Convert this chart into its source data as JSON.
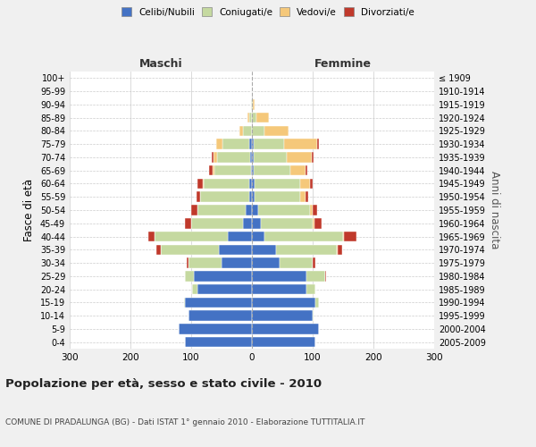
{
  "age_groups": [
    "0-4",
    "5-9",
    "10-14",
    "15-19",
    "20-24",
    "25-29",
    "30-34",
    "35-39",
    "40-44",
    "45-49",
    "50-54",
    "55-59",
    "60-64",
    "65-69",
    "70-74",
    "75-79",
    "80-84",
    "85-89",
    "90-94",
    "95-99",
    "100+"
  ],
  "birth_years": [
    "2005-2009",
    "2000-2004",
    "1995-1999",
    "1990-1994",
    "1985-1989",
    "1980-1984",
    "1975-1979",
    "1970-1974",
    "1965-1969",
    "1960-1964",
    "1955-1959",
    "1950-1954",
    "1945-1949",
    "1940-1944",
    "1935-1939",
    "1930-1934",
    "1925-1929",
    "1920-1924",
    "1915-1919",
    "1910-1914",
    "≤ 1909"
  ],
  "males": {
    "celibi": [
      110,
      120,
      105,
      110,
      90,
      95,
      50,
      55,
      40,
      15,
      10,
      5,
      4,
      2,
      3,
      4,
      0,
      0,
      0,
      0,
      0
    ],
    "coniugati": [
      0,
      0,
      0,
      2,
      8,
      15,
      55,
      95,
      120,
      85,
      80,
      80,
      75,
      60,
      55,
      45,
      15,
      5,
      1,
      0,
      0
    ],
    "vedovi": [
      0,
      0,
      0,
      0,
      0,
      0,
      0,
      0,
      0,
      0,
      0,
      1,
      2,
      3,
      5,
      10,
      5,
      2,
      0,
      0,
      0
    ],
    "divorziati": [
      0,
      0,
      0,
      0,
      1,
      1,
      3,
      8,
      10,
      10,
      10,
      5,
      8,
      5,
      3,
      0,
      0,
      0,
      0,
      0,
      0
    ]
  },
  "females": {
    "nubili": [
      105,
      110,
      100,
      105,
      90,
      90,
      45,
      40,
      20,
      15,
      10,
      5,
      5,
      3,
      3,
      3,
      0,
      0,
      0,
      0,
      0
    ],
    "coniugate": [
      0,
      0,
      2,
      5,
      15,
      30,
      55,
      100,
      130,
      85,
      85,
      75,
      75,
      60,
      55,
      50,
      20,
      8,
      2,
      0,
      0
    ],
    "vedove": [
      0,
      0,
      0,
      0,
      0,
      0,
      0,
      1,
      2,
      3,
      5,
      8,
      15,
      25,
      40,
      55,
      40,
      20,
      3,
      0,
      0
    ],
    "divorziate": [
      0,
      0,
      0,
      0,
      0,
      2,
      5,
      8,
      20,
      12,
      8,
      5,
      5,
      3,
      3,
      3,
      0,
      0,
      0,
      0,
      0
    ]
  },
  "colors": {
    "celibi_nubili": "#4472C4",
    "coniugati": "#C5D9A0",
    "vedovi": "#F5C87A",
    "divorziati": "#C0392B"
  },
  "xlim": 300,
  "title": "Popolazione per età, sesso e stato civile - 2010",
  "subtitle": "COMUNE DI PRADALUNGA (BG) - Dati ISTAT 1° gennaio 2010 - Elaborazione TUTTITALIA.IT",
  "ylabel_left": "Fasce di età",
  "ylabel_right": "Anni di nascita",
  "xlabel_left": "Maschi",
  "xlabel_right": "Femmine",
  "legend_labels": [
    "Celibi/Nubili",
    "Coniugati/e",
    "Vedovi/e",
    "Divorziati/e"
  ],
  "background_color": "#f0f0f0",
  "plot_bg_color": "#ffffff"
}
